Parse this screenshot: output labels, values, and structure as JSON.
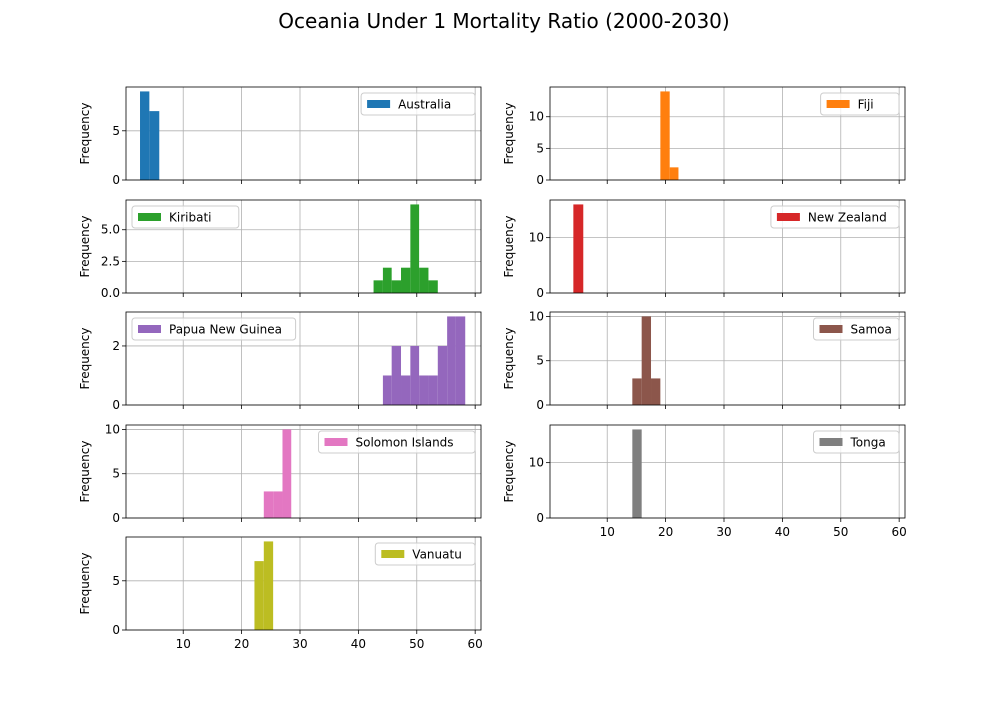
{
  "figure": {
    "title": "Oceania Under 1 Mortality Ratio (2000-2030)"
  },
  "chart_data": {
    "type": "histogram-grid",
    "title": "Oceania Under 1 Mortality Ratio (2000-2030)",
    "xlim": [
      0.2,
      61
    ],
    "x_ticks": [
      10,
      20,
      30,
      40,
      50,
      60
    ],
    "ylabel": "Frequency",
    "grid": true,
    "legend_placement": "upper-right (Kiribati, Papua New Guinea: upper-left)",
    "panels": [
      {
        "name": "Australia",
        "color": "#1f77b4",
        "legend": "right",
        "ylim": [
          0,
          9.45
        ],
        "y_ticks": [
          "0",
          "5"
        ],
        "y_tick_values": [
          0,
          5
        ],
        "bins": [
          {
            "x0": 2.6,
            "x1": 4.2,
            "count": 9
          },
          {
            "x0": 4.2,
            "x1": 5.9,
            "count": 7
          }
        ]
      },
      {
        "name": "Fiji",
        "color": "#ff7f0e",
        "legend": "right",
        "ylim": [
          0,
          14.7
        ],
        "y_ticks": [
          "0",
          "5",
          "10"
        ],
        "y_tick_values": [
          0,
          5,
          10
        ],
        "bins": [
          {
            "x0": 19.1,
            "x1": 20.7,
            "count": 14
          },
          {
            "x0": 20.7,
            "x1": 22.2,
            "count": 2
          }
        ]
      },
      {
        "name": "Kiribati",
        "color": "#2ca02c",
        "legend": "left",
        "ylim": [
          0,
          7.35
        ],
        "y_ticks": [
          "0.0",
          "2.5",
          "5.0"
        ],
        "y_tick_values": [
          0,
          2.5,
          5
        ],
        "bins": [
          {
            "x0": 42.6,
            "x1": 44.2,
            "count": 1
          },
          {
            "x0": 44.2,
            "x1": 45.7,
            "count": 2
          },
          {
            "x0": 45.7,
            "x1": 47.3,
            "count": 1
          },
          {
            "x0": 47.3,
            "x1": 48.9,
            "count": 2
          },
          {
            "x0": 48.9,
            "x1": 50.4,
            "count": 7
          },
          {
            "x0": 50.4,
            "x1": 52.0,
            "count": 2
          },
          {
            "x0": 52.0,
            "x1": 53.6,
            "count": 1
          }
        ]
      },
      {
        "name": "New Zealand",
        "color": "#d62728",
        "legend": "right",
        "ylim": [
          0,
          16.8
        ],
        "y_ticks": [
          "0",
          "10"
        ],
        "y_tick_values": [
          0,
          10
        ],
        "bins": [
          {
            "x0": 4.2,
            "x1": 5.9,
            "count": 16
          }
        ]
      },
      {
        "name": "Papua New Guinea",
        "color": "#9467bd",
        "legend": "left",
        "ylim": [
          0,
          3.15
        ],
        "y_ticks": [
          "0",
          "2"
        ],
        "y_tick_values": [
          0,
          2
        ],
        "bins": [
          {
            "x0": 44.2,
            "x1": 45.7,
            "count": 1
          },
          {
            "x0": 45.7,
            "x1": 47.3,
            "count": 2
          },
          {
            "x0": 47.3,
            "x1": 48.9,
            "count": 1
          },
          {
            "x0": 48.9,
            "x1": 50.4,
            "count": 2
          },
          {
            "x0": 50.4,
            "x1": 52.0,
            "count": 1
          },
          {
            "x0": 52.0,
            "x1": 53.6,
            "count": 1
          },
          {
            "x0": 53.6,
            "x1": 55.2,
            "count": 2
          },
          {
            "x0": 55.2,
            "x1": 56.7,
            "count": 3
          },
          {
            "x0": 56.7,
            "x1": 58.3,
            "count": 3
          }
        ]
      },
      {
        "name": "Samoa",
        "color": "#8c564b",
        "legend": "right",
        "ylim": [
          0,
          10.5
        ],
        "y_ticks": [
          "0",
          "5",
          "10"
        ],
        "y_tick_values": [
          0,
          5,
          10
        ],
        "bins": [
          {
            "x0": 14.3,
            "x1": 15.9,
            "count": 3
          },
          {
            "x0": 15.9,
            "x1": 17.5,
            "count": 10
          },
          {
            "x0": 17.5,
            "x1": 19.1,
            "count": 3
          }
        ]
      },
      {
        "name": "Solomon Islands",
        "color": "#e377c2",
        "legend": "right",
        "ylim": [
          0,
          10.5
        ],
        "y_ticks": [
          "0",
          "5",
          "10"
        ],
        "y_tick_values": [
          0,
          5,
          10
        ],
        "bins": [
          {
            "x0": 23.8,
            "x1": 25.4,
            "count": 3
          },
          {
            "x0": 25.4,
            "x1": 27.0,
            "count": 3
          },
          {
            "x0": 27.0,
            "x1": 28.5,
            "count": 10
          }
        ]
      },
      {
        "name": "Tonga",
        "color": "#7f7f7f",
        "legend": "right",
        "ylim": [
          0,
          16.8
        ],
        "y_ticks": [
          "0",
          "10"
        ],
        "y_tick_values": [
          0,
          10
        ],
        "bins": [
          {
            "x0": 14.3,
            "x1": 15.9,
            "count": 16
          }
        ]
      },
      {
        "name": "Vanuatu",
        "color": "#bcbd22",
        "legend": "right",
        "ylim": [
          0,
          9.45
        ],
        "y_ticks": [
          "0",
          "5"
        ],
        "y_tick_values": [
          0,
          5
        ],
        "bins": [
          {
            "x0": 22.2,
            "x1": 23.8,
            "count": 7
          },
          {
            "x0": 23.8,
            "x1": 25.4,
            "count": 9
          }
        ]
      }
    ]
  }
}
